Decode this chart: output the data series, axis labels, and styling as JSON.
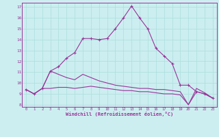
{
  "xlabel": "Windchill (Refroidissement éolien,°C)",
  "background_color": "#cceef0",
  "grid_color": "#aadddd",
  "line_color": "#993399",
  "xlim": [
    -0.5,
    23.5
  ],
  "ylim": [
    7.8,
    17.4
  ],
  "yticks": [
    8,
    9,
    10,
    11,
    12,
    13,
    14,
    15,
    16,
    17
  ],
  "xticks": [
    0,
    1,
    2,
    3,
    4,
    5,
    6,
    7,
    8,
    9,
    10,
    11,
    12,
    13,
    14,
    15,
    16,
    17,
    18,
    19,
    20,
    21,
    22,
    23
  ],
  "line1_x": [
    0,
    1,
    2,
    3,
    4,
    5,
    6,
    7,
    8,
    9,
    10,
    11,
    12,
    13,
    14,
    15,
    16,
    17,
    18,
    19,
    20,
    21,
    22,
    23
  ],
  "line1_y": [
    9.4,
    9.0,
    9.5,
    11.1,
    11.5,
    12.3,
    12.8,
    14.1,
    14.1,
    14.0,
    14.1,
    15.0,
    16.0,
    17.1,
    16.0,
    15.0,
    13.2,
    12.5,
    11.8,
    9.8,
    9.8,
    9.2,
    9.0,
    8.6
  ],
  "line2_x": [
    0,
    1,
    2,
    3,
    4,
    5,
    6,
    7,
    8,
    9,
    10,
    11,
    12,
    13,
    14,
    15,
    16,
    17,
    18,
    19,
    20,
    21,
    22,
    23
  ],
  "line2_y": [
    9.4,
    9.0,
    9.5,
    11.1,
    10.8,
    10.5,
    10.3,
    10.8,
    10.5,
    10.2,
    10.0,
    9.8,
    9.7,
    9.6,
    9.5,
    9.5,
    9.4,
    9.4,
    9.3,
    9.2,
    8.0,
    9.5,
    9.1,
    8.6
  ],
  "line3_x": [
    0,
    1,
    2,
    3,
    4,
    5,
    6,
    7,
    8,
    9,
    10,
    11,
    12,
    13,
    14,
    15,
    16,
    17,
    18,
    19,
    20,
    21,
    22,
    23
  ],
  "line3_y": [
    9.4,
    9.0,
    9.5,
    9.5,
    9.6,
    9.6,
    9.5,
    9.6,
    9.7,
    9.6,
    9.5,
    9.4,
    9.3,
    9.3,
    9.2,
    9.2,
    9.1,
    9.0,
    9.0,
    8.9,
    8.0,
    9.2,
    9.0,
    8.6
  ]
}
